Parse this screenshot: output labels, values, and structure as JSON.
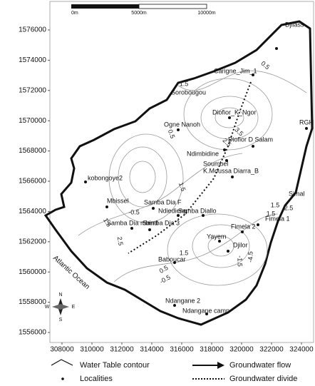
{
  "map": {
    "scale_bar": {
      "labels": [
        "0m",
        "5000m",
        "10000m"
      ]
    },
    "axes": {
      "xlim": [
        307190,
        324810
      ],
      "ylim": [
        1555340,
        1577887
      ],
      "xticks": [
        308000,
        310000,
        312000,
        314000,
        316000,
        318000,
        320000,
        322000,
        324000
      ],
      "yticks": [
        1556000,
        1558000,
        1560000,
        1562000,
        1564000,
        1566000,
        1568000,
        1570000,
        1572000,
        1574000,
        1576000
      ]
    },
    "localities": [
      "Djilass",
      "Carigne_Jim_1",
      "Sorobougou",
      "Diofior_K_Ngor",
      "RGH",
      "Ogne Nanoh",
      "Diofior D Salam",
      "Ndimbidine",
      "Soumbel",
      "kobongoye2",
      "K.Moussa Diarra_B",
      "Simal",
      "Mbissel",
      "Samba Dia F",
      "Ndiedieng",
      "Samba Diallo",
      "Samba Dia mbind",
      "Samba Dia 3",
      "Fimela 1",
      "Fimela 2",
      "Yayem",
      "Djilor",
      "Baboucar",
      "Ndangane 2",
      "Ndangane camp"
    ],
    "contour_labels": [
      0.5,
      1.5,
      2.5,
      3.5,
      0.5,
      1.5,
      -0.5,
      1.5,
      2.5,
      1.5,
      2.5,
      1.5,
      0.5,
      -0.5,
      -1.5,
      -4.5,
      1.5
    ],
    "ocean_label": "Atlantic Ocean",
    "compass": [
      "N",
      "S",
      "E",
      "W"
    ],
    "legend": [
      "Water Table contour",
      "Localities",
      "Groundwater flow",
      "Groundwater divide"
    ]
  }
}
